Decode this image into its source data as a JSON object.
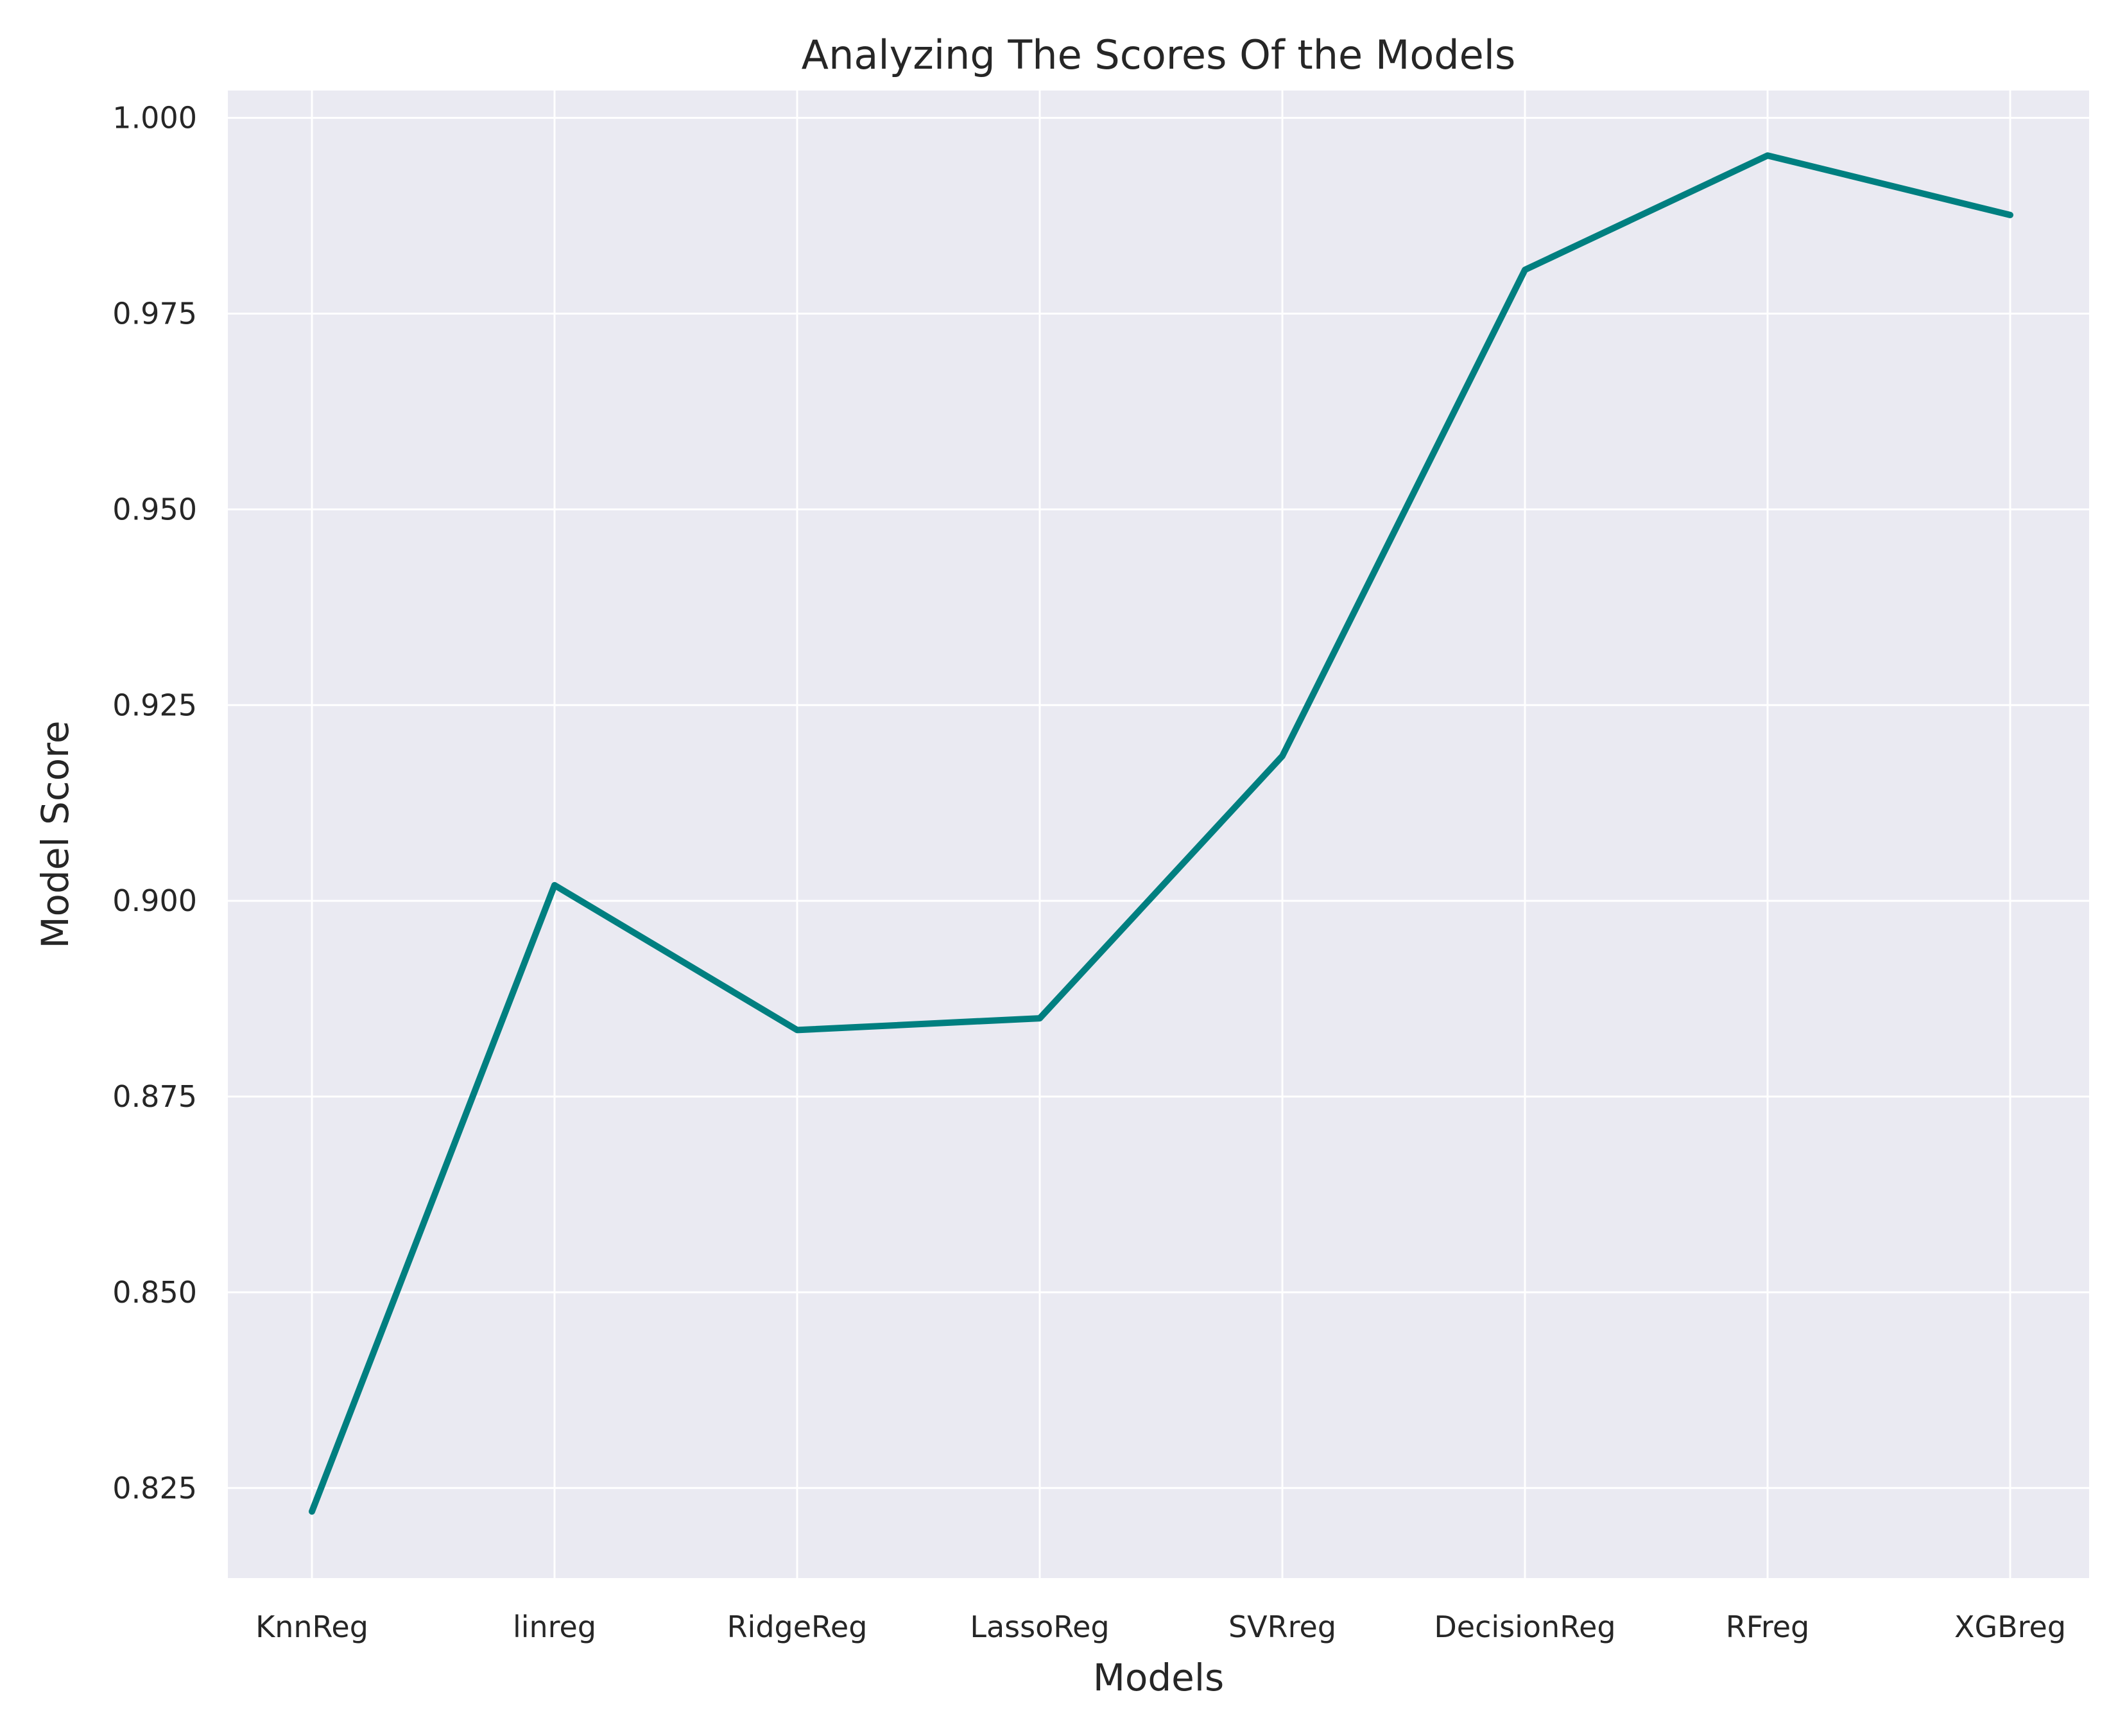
{
  "chart_data": {
    "type": "line",
    "title": "Analyzing The Scores Of the Models",
    "xlabel": "Models",
    "ylabel": "Model Score",
    "categories": [
      "KnnReg",
      "linreg",
      "RidgeReg",
      "LassoReg",
      "SVRreg",
      "DecisionReg",
      "RFreg",
      "XGBreg"
    ],
    "series": [
      {
        "values": [
          0.822,
          0.902,
          0.8835,
          0.885,
          0.9185,
          0.9806,
          0.9952,
          0.9876
        ]
      }
    ],
    "ylim": [
      0.8135,
      1.0035
    ],
    "yticks": [
      "0.825",
      "0.850",
      "0.875",
      "0.900",
      "0.925",
      "0.950",
      "0.975",
      "1.000"
    ],
    "grid": true,
    "legend": "none",
    "colors": {
      "background": "#EAEAF2",
      "grid": "#FFFFFF",
      "line": "#007F80",
      "text": "#262626"
    }
  }
}
